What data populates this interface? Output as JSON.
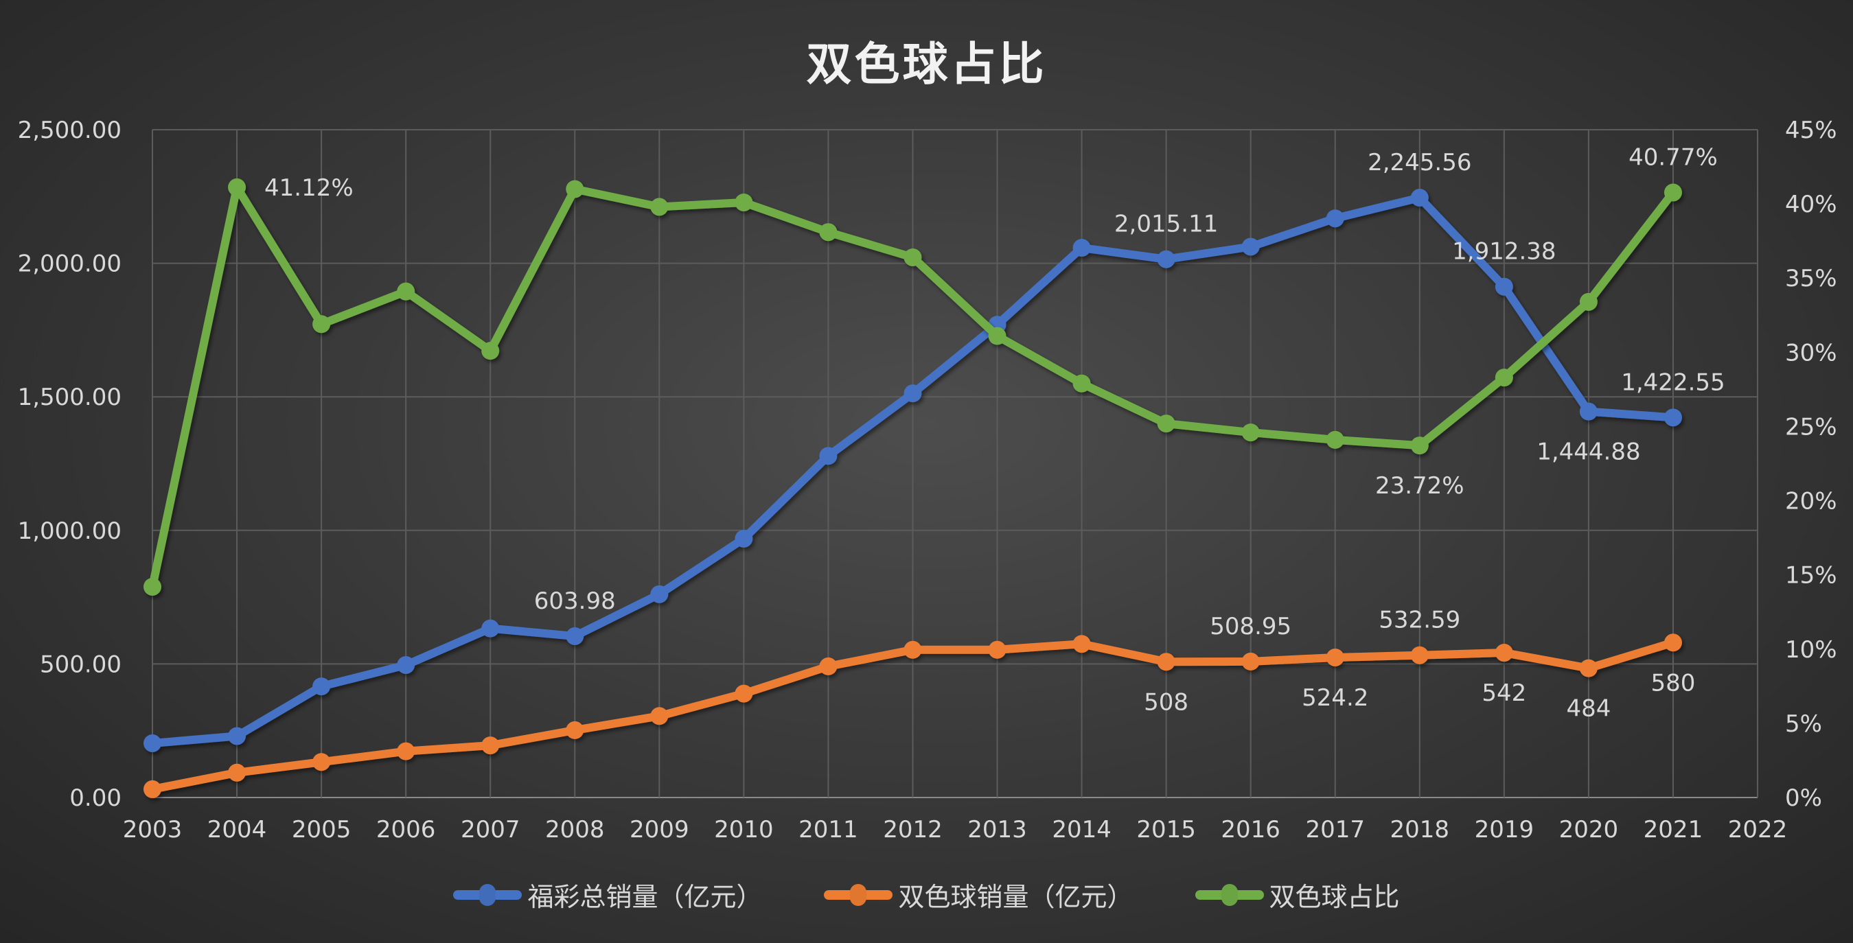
{
  "chart_data": {
    "type": "line",
    "title": "双色球占比",
    "x": [
      "2003",
      "2004",
      "2005",
      "2006",
      "2007",
      "2008",
      "2009",
      "2010",
      "2011",
      "2012",
      "2013",
      "2014",
      "2015",
      "2016",
      "2017",
      "2018",
      "2019",
      "2020",
      "2021"
    ],
    "x_ticks": [
      "2003",
      "2004",
      "2005",
      "2006",
      "2007",
      "2008",
      "2009",
      "2010",
      "2011",
      "2012",
      "2013",
      "2014",
      "2015",
      "2016",
      "2017",
      "2018",
      "2019",
      "2020",
      "2021",
      "2022"
    ],
    "y_left": {
      "range": [
        0,
        2500
      ],
      "ticks": [
        "0.00",
        "500.00",
        "1,000.00",
        "1,500.00",
        "2,000.00",
        "2,500.00"
      ],
      "tick_values": [
        0,
        500,
        1000,
        1500,
        2000,
        2500
      ]
    },
    "y_right": {
      "range": [
        0,
        45
      ],
      "ticks": [
        "0%",
        "5%",
        "10%",
        "15%",
        "20%",
        "25%",
        "30%",
        "35%",
        "40%",
        "45%"
      ],
      "tick_values": [
        0,
        5,
        10,
        15,
        20,
        25,
        30,
        35,
        40,
        45
      ],
      "unit": "%"
    },
    "grid": true,
    "legend_position": "bottom",
    "series": [
      {
        "name": "福彩总销量（亿元）",
        "axis": "left",
        "color": "#4472C4",
        "values": [
          203,
          230,
          416,
          496,
          633,
          603.98,
          761,
          969,
          1279,
          1513,
          1770,
          2058,
          2015.11,
          2062,
          2168,
          2245.56,
          1912.38,
          1444.88,
          1422.55
        ],
        "labels": [
          {
            "index": 5,
            "text": "603.98",
            "pos": "above"
          },
          {
            "index": 12,
            "text": "2,015.11",
            "pos": "above"
          },
          {
            "index": 15,
            "text": "2,245.56",
            "pos": "above"
          },
          {
            "index": 16,
            "text": "1,912.38",
            "pos": "above"
          },
          {
            "index": 17,
            "text": "1,444.88",
            "pos": "below"
          },
          {
            "index": 18,
            "text": "1,422.55",
            "pos": "above"
          }
        ]
      },
      {
        "name": "双色球销量（亿元）",
        "axis": "left",
        "color": "#ED7D31",
        "values": [
          31,
          93,
          133,
          173,
          195,
          252,
          305,
          389,
          491,
          553,
          553,
          575,
          508,
          508.95,
          524.2,
          532.59,
          542,
          484,
          580
        ],
        "labels": [
          {
            "index": 12,
            "text": "508",
            "pos": "below"
          },
          {
            "index": 13,
            "text": "508.95",
            "pos": "above"
          },
          {
            "index": 14,
            "text": "524.2",
            "pos": "below"
          },
          {
            "index": 15,
            "text": "532.59",
            "pos": "above"
          },
          {
            "index": 16,
            "text": "542",
            "pos": "below"
          },
          {
            "index": 17,
            "text": "484",
            "pos": "below"
          },
          {
            "index": 18,
            "text": "580",
            "pos": "below"
          }
        ]
      },
      {
        "name": "双色球占比",
        "axis": "right",
        "color": "#70AD47",
        "values": [
          14.2,
          41.12,
          31.9,
          34.1,
          30.1,
          41.0,
          39.8,
          40.1,
          38.1,
          36.4,
          31.1,
          27.9,
          25.2,
          24.6,
          24.1,
          23.72,
          28.3,
          33.4,
          40.77
        ],
        "labels": [
          {
            "index": 1,
            "text": "41.12%",
            "pos": "right"
          },
          {
            "index": 15,
            "text": "23.72%",
            "pos": "below"
          },
          {
            "index": 18,
            "text": "40.77%",
            "pos": "above"
          }
        ]
      }
    ]
  }
}
